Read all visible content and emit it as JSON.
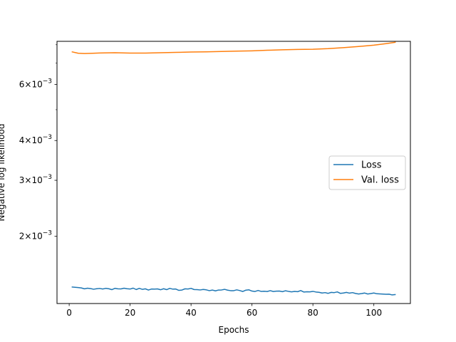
{
  "chart_data": {
    "type": "line",
    "title": "",
    "xlabel": "Epochs",
    "ylabel": "Negative log likelihood",
    "yscale": "log",
    "xlim": [
      -4,
      112
    ],
    "ylim": [
      0.00123,
      0.0082
    ],
    "grid": false,
    "legend_position": "center-right",
    "x_ticks": [
      0,
      20,
      40,
      60,
      80,
      100
    ],
    "x_tick_labels": [
      "0",
      "20",
      "40",
      "60",
      "80",
      "100"
    ],
    "y_ticks": [
      0.002,
      0.003,
      0.004,
      0.006
    ],
    "y_tick_labels": [
      {
        "mantissa": "2",
        "times": "×",
        "base": "10",
        "exponent": "−3"
      },
      {
        "mantissa": "3",
        "times": "×",
        "base": "10",
        "exponent": "−3"
      },
      {
        "mantissa": "4",
        "times": "×",
        "base": "10",
        "exponent": "−3"
      },
      {
        "mantissa": "6",
        "times": "×",
        "base": "10",
        "exponent": "−3"
      }
    ],
    "y_minor_ticks": [
      0.005,
      0.007,
      0.008
    ],
    "series": [
      {
        "name": "Loss",
        "color": "#1f77b4",
        "x": [
          1,
          2,
          3,
          4,
          5,
          6,
          7,
          8,
          9,
          10,
          11,
          12,
          13,
          14,
          15,
          16,
          17,
          18,
          19,
          20,
          21,
          22,
          23,
          24,
          25,
          26,
          27,
          28,
          29,
          30,
          31,
          32,
          33,
          34,
          35,
          36,
          37,
          38,
          39,
          40,
          41,
          42,
          43,
          44,
          45,
          46,
          47,
          48,
          49,
          50,
          51,
          52,
          53,
          54,
          55,
          56,
          57,
          58,
          59,
          60,
          61,
          62,
          63,
          64,
          65,
          66,
          67,
          68,
          69,
          70,
          71,
          72,
          73,
          74,
          75,
          76,
          77,
          78,
          79,
          80,
          81,
          82,
          83,
          84,
          85,
          86,
          87,
          88,
          89,
          90,
          91,
          92,
          93,
          94,
          95,
          96,
          97,
          98,
          99,
          100,
          101,
          102,
          103,
          104,
          105,
          106,
          107
        ],
        "values": [
          0.001386,
          0.001383,
          0.00138,
          0.001377,
          0.001368,
          0.001374,
          0.001371,
          0.001364,
          0.001369,
          0.001372,
          0.001366,
          0.001373,
          0.001369,
          0.00136,
          0.001373,
          0.001368,
          0.001367,
          0.001374,
          0.001369,
          0.001366,
          0.001375,
          0.001361,
          0.001373,
          0.001363,
          0.001368,
          0.001356,
          0.001366,
          0.001365,
          0.001367,
          0.001359,
          0.001369,
          0.00136,
          0.001373,
          0.001365,
          0.001366,
          0.001353,
          0.001356,
          0.001368,
          0.001366,
          0.001373,
          0.001361,
          0.00136,
          0.001357,
          0.001362,
          0.001358,
          0.00135,
          0.001356,
          0.001348,
          0.001356,
          0.001357,
          0.001363,
          0.001355,
          0.00135,
          0.00135,
          0.001358,
          0.001351,
          0.001342,
          0.001355,
          0.001358,
          0.001346,
          0.001342,
          0.001352,
          0.001343,
          0.001344,
          0.001342,
          0.00135,
          0.001342,
          0.001345,
          0.001346,
          0.00134,
          0.001349,
          0.001343,
          0.001338,
          0.001343,
          0.00134,
          0.001351,
          0.001337,
          0.001339,
          0.001338,
          0.001343,
          0.001337,
          0.001334,
          0.001327,
          0.001331,
          0.001324,
          0.001333,
          0.001331,
          0.001338,
          0.001324,
          0.001327,
          0.001333,
          0.001326,
          0.001331,
          0.001323,
          0.001318,
          0.001322,
          0.001327,
          0.001318,
          0.001322,
          0.001327,
          0.00132,
          0.001319,
          0.001317,
          0.001315,
          0.001316,
          0.001309,
          0.001312
        ]
      },
      {
        "name": "Val. loss",
        "color": "#ff7f0e",
        "x": [
          1,
          3,
          5,
          7,
          10,
          15,
          20,
          25,
          30,
          35,
          40,
          45,
          50,
          55,
          60,
          65,
          70,
          75,
          80,
          85,
          90,
          95,
          100,
          104,
          107
        ],
        "values": [
          0.007596,
          0.007522,
          0.007509,
          0.007518,
          0.007537,
          0.007549,
          0.007532,
          0.00753,
          0.00755,
          0.007569,
          0.007588,
          0.007598,
          0.007618,
          0.007637,
          0.007654,
          0.007686,
          0.007711,
          0.007731,
          0.007743,
          0.007776,
          0.007832,
          0.007899,
          0.007978,
          0.008064,
          0.008141
        ]
      }
    ]
  }
}
